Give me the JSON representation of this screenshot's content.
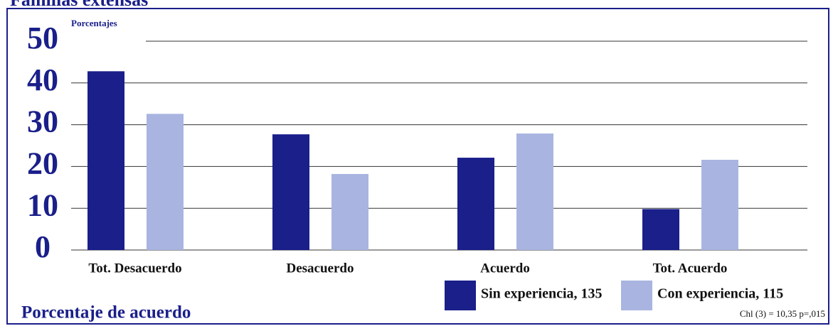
{
  "chart_data": {
    "type": "bar",
    "title": "Familias extensas",
    "y_label": "Porcentajes",
    "x_label": "Porcentaje de acuerdo",
    "annotation": "Chl (3) = 10,35 p=,015",
    "categories": [
      "Tot. Desacuerdo",
      "Desacuerdo",
      "Acuerdo",
      "Tot. Acuerdo"
    ],
    "series": [
      {
        "name": "Sin experiencia, 135",
        "color": "#1a1f8a",
        "values": [
          42.8,
          27.7,
          22.1,
          9.8
        ]
      },
      {
        "name": "Con experiencia, 115",
        "color": "#a9b5e0",
        "values": [
          32.6,
          18.2,
          27.9,
          21.6
        ]
      }
    ],
    "ylim": [
      0,
      50
    ],
    "yticks": [
      0,
      10,
      20,
      30,
      40,
      50
    ],
    "grid": true
  }
}
